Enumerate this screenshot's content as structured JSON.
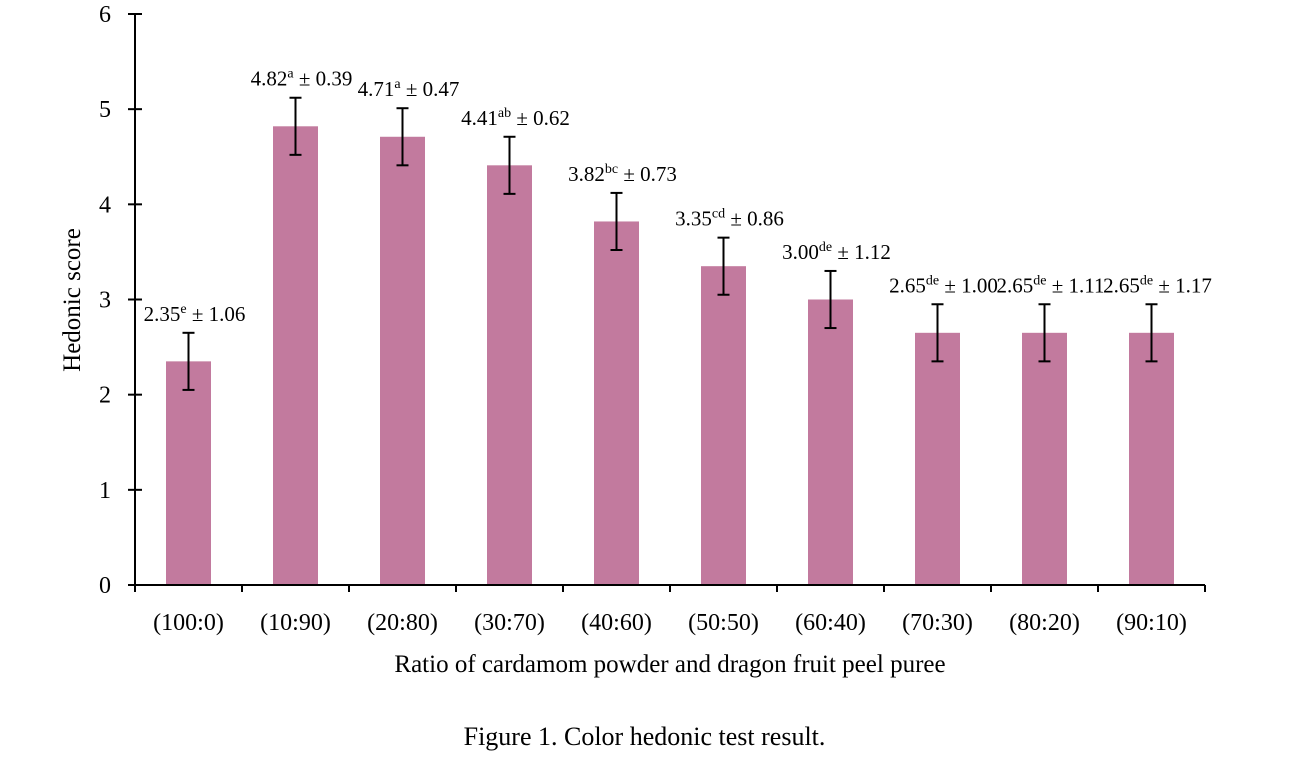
{
  "chart_data": {
    "type": "bar",
    "title": "",
    "xlabel": "Ratio of cardamom powder and dragon fruit peel puree",
    "ylabel": "Hedonic score",
    "ylim": [
      0,
      6
    ],
    "yticks": [
      "0",
      "1",
      "2",
      "3",
      "4",
      "5",
      "6"
    ],
    "grid": false,
    "bar_color": "#c27a9e",
    "categories": [
      "(100:0)",
      "(10:90)",
      "(20:80)",
      "(30:70)",
      "(40:60)",
      "(50:50)",
      "(60:40)",
      "(70:30)",
      "(80:20)",
      "(90:10)"
    ],
    "values": [
      2.35,
      4.82,
      4.71,
      4.41,
      3.82,
      3.35,
      3.0,
      2.65,
      2.65,
      2.65
    ],
    "error_bar_drawn": 0.3,
    "labels": [
      {
        "value": "2.35",
        "sup": "e",
        "sd": "± 1.06"
      },
      {
        "value": "4.82",
        "sup": "a",
        "sd": "± 0.39"
      },
      {
        "value": "4.71",
        "sup": "a",
        "sd": "± 0.47"
      },
      {
        "value": "4.41",
        "sup": "ab",
        "sd": "± 0.62"
      },
      {
        "value": "3.82",
        "sup": "bc",
        "sd": "± 0.73"
      },
      {
        "value": "3.35",
        "sup": "cd",
        "sd": "± 0.86"
      },
      {
        "value": "3.00",
        "sup": "de",
        "sd": "± 1.12"
      },
      {
        "value": "2.65",
        "sup": "de",
        "sd": "± 1.00"
      },
      {
        "value": "2.65",
        "sup": "de",
        "sd": "± 1.11"
      },
      {
        "value": "2.65",
        "sup": "de",
        "sd": "± 1.17"
      }
    ]
  },
  "caption": "Figure 1. Color hedonic test result."
}
